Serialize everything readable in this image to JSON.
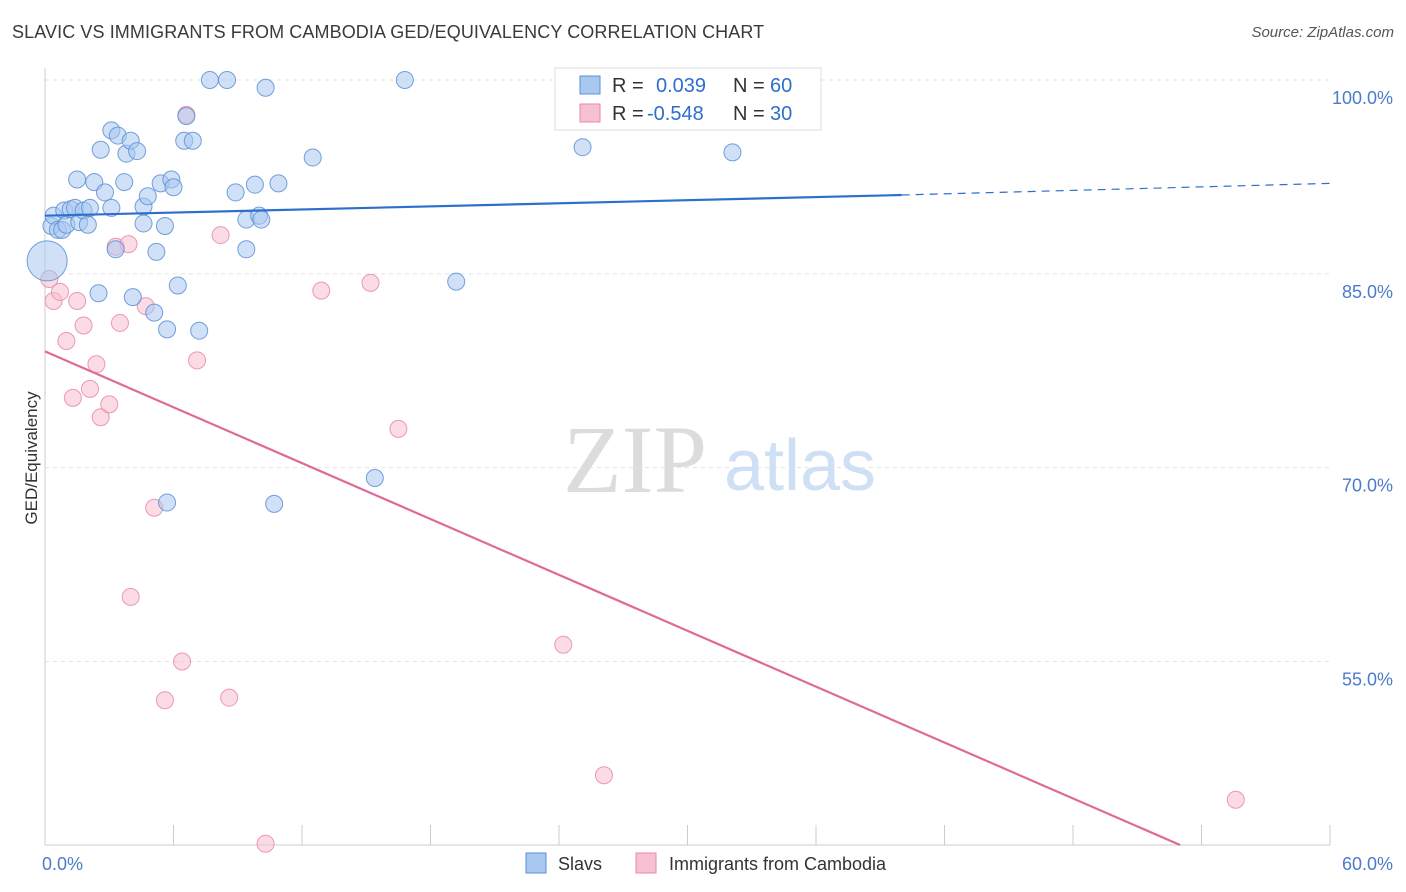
{
  "title": "SLAVIC VS IMMIGRANTS FROM CAMBODIA GED/EQUIVALENCY CORRELATION CHART",
  "source": "Source: ZipAtlas.com",
  "watermark": {
    "zip": "ZIP",
    "atlas": "atlas"
  },
  "colors": {
    "blue_fill": "#a9c8f0",
    "blue_stroke": "#5b8fd6",
    "blue_line": "#2f6fcc",
    "pink_fill": "#f7c0d0",
    "pink_stroke": "#e88aa8",
    "pink_line": "#e06a96",
    "tick_text": "#4a7cc9",
    "grid": "#e3e3e3"
  },
  "legend": {
    "rows": [
      {
        "r_label": "R =",
        "r_value": "0.039",
        "n_label": "N =",
        "n_value": "60",
        "series": "blue"
      },
      {
        "r_label": "R =",
        "r_value": "-0.548",
        "n_label": "N =",
        "n_value": "30",
        "series": "pink"
      }
    ]
  },
  "bottom_legend": [
    {
      "label": "Slavs",
      "series": "blue"
    },
    {
      "label": "Immigrants from Cambodia",
      "series": "pink"
    }
  ],
  "chart_data": {
    "type": "scatter",
    "title": "SLAVIC VS IMMIGRANTS FROM CAMBODIA GED/EQUIVALENCY CORRELATION CHART",
    "xlabel": "",
    "ylabel": "GED/Equivalency",
    "xlim": [
      0,
      60
    ],
    "ylim": [
      40.8,
      101.5
    ],
    "x_tick_labels": [
      {
        "value": 0,
        "label": "0.0%"
      },
      {
        "value": 60,
        "label": "60.0%"
      }
    ],
    "y_tick_labels": [
      {
        "value": 100,
        "label": "100.0%"
      },
      {
        "value": 85,
        "label": "85.0%"
      },
      {
        "value": 70,
        "label": "70.0%"
      },
      {
        "value": 55,
        "label": "55.0%"
      }
    ],
    "grid": true,
    "legend_position": "top-center",
    "series": [
      {
        "name": "Slavs",
        "color": "blue",
        "points": [
          [
            0.1,
            86.0
          ],
          [
            0.3,
            88.7
          ],
          [
            0.4,
            89.5
          ],
          [
            0.6,
            88.4
          ],
          [
            0.8,
            88.4
          ],
          [
            0.9,
            89.9
          ],
          [
            1.0,
            88.8
          ],
          [
            1.2,
            90.0
          ],
          [
            1.4,
            90.1
          ],
          [
            1.5,
            92.3
          ],
          [
            1.6,
            89.0
          ],
          [
            1.8,
            89.9
          ],
          [
            2.0,
            88.8
          ],
          [
            2.1,
            90.1
          ],
          [
            2.3,
            92.1
          ],
          [
            2.5,
            83.5
          ],
          [
            2.6,
            94.6
          ],
          [
            2.8,
            91.3
          ],
          [
            3.1,
            90.1
          ],
          [
            3.1,
            96.1
          ],
          [
            3.3,
            86.9
          ],
          [
            3.4,
            95.7
          ],
          [
            3.7,
            92.1
          ],
          [
            3.8,
            94.3
          ],
          [
            4.0,
            95.3
          ],
          [
            4.1,
            83.2
          ],
          [
            4.3,
            94.5
          ],
          [
            4.6,
            90.2
          ],
          [
            4.6,
            88.9
          ],
          [
            4.8,
            91.0
          ],
          [
            5.1,
            82.0
          ],
          [
            5.2,
            86.7
          ],
          [
            5.4,
            92.0
          ],
          [
            5.6,
            88.7
          ],
          [
            5.7,
            80.7
          ],
          [
            5.7,
            67.3
          ],
          [
            5.9,
            92.3
          ],
          [
            6.0,
            91.7
          ],
          [
            6.2,
            84.1
          ],
          [
            6.5,
            95.3
          ],
          [
            6.6,
            97.2
          ],
          [
            6.9,
            95.3
          ],
          [
            7.2,
            80.6
          ],
          [
            7.7,
            100.0
          ],
          [
            8.5,
            100.0
          ],
          [
            8.9,
            91.3
          ],
          [
            9.4,
            86.9
          ],
          [
            9.4,
            89.2
          ],
          [
            9.8,
            91.9
          ],
          [
            10.0,
            89.5
          ],
          [
            10.1,
            89.2
          ],
          [
            10.3,
            99.4
          ],
          [
            10.7,
            67.2
          ],
          [
            10.9,
            92.0
          ],
          [
            12.5,
            94.0
          ],
          [
            15.4,
            69.2
          ],
          [
            16.8,
            100.0
          ],
          [
            19.2,
            84.4
          ],
          [
            25.1,
            94.8
          ],
          [
            32.1,
            94.4
          ]
        ]
      },
      {
        "name": "Immigrants from Cambodia",
        "color": "pink",
        "points": [
          [
            0.2,
            84.6
          ],
          [
            0.4,
            82.9
          ],
          [
            0.7,
            83.6
          ],
          [
            1.0,
            79.8
          ],
          [
            1.3,
            75.4
          ],
          [
            1.5,
            82.9
          ],
          [
            1.8,
            81.0
          ],
          [
            2.1,
            76.1
          ],
          [
            2.4,
            78.0
          ],
          [
            2.6,
            73.9
          ],
          [
            3.0,
            74.9
          ],
          [
            3.3,
            87.1
          ],
          [
            3.5,
            81.2
          ],
          [
            3.9,
            87.3
          ],
          [
            4.0,
            60.0
          ],
          [
            4.7,
            82.5
          ],
          [
            5.1,
            66.9
          ],
          [
            5.6,
            52.0
          ],
          [
            6.4,
            55.0
          ],
          [
            6.6,
            97.3
          ],
          [
            7.1,
            78.3
          ],
          [
            8.2,
            88.0
          ],
          [
            8.6,
            52.2
          ],
          [
            10.3,
            40.9
          ],
          [
            12.9,
            83.7
          ],
          [
            15.2,
            84.3
          ],
          [
            16.5,
            73.0
          ],
          [
            24.2,
            56.3
          ],
          [
            26.1,
            46.2
          ],
          [
            55.6,
            44.3
          ]
        ]
      }
    ],
    "trend_lines": [
      {
        "series": "Slavs",
        "solid": {
          "x0": 0,
          "y0": 89.5,
          "x1": 40,
          "y1": 91.1
        },
        "dashed": {
          "x0": 40,
          "y0": 91.1,
          "x1": 60,
          "y1": 92.0
        }
      },
      {
        "series": "Immigrants from Cambodia",
        "solid": {
          "x0": 0,
          "y0": 79.0,
          "x1": 53.0,
          "y1": 40.8
        }
      }
    ]
  }
}
